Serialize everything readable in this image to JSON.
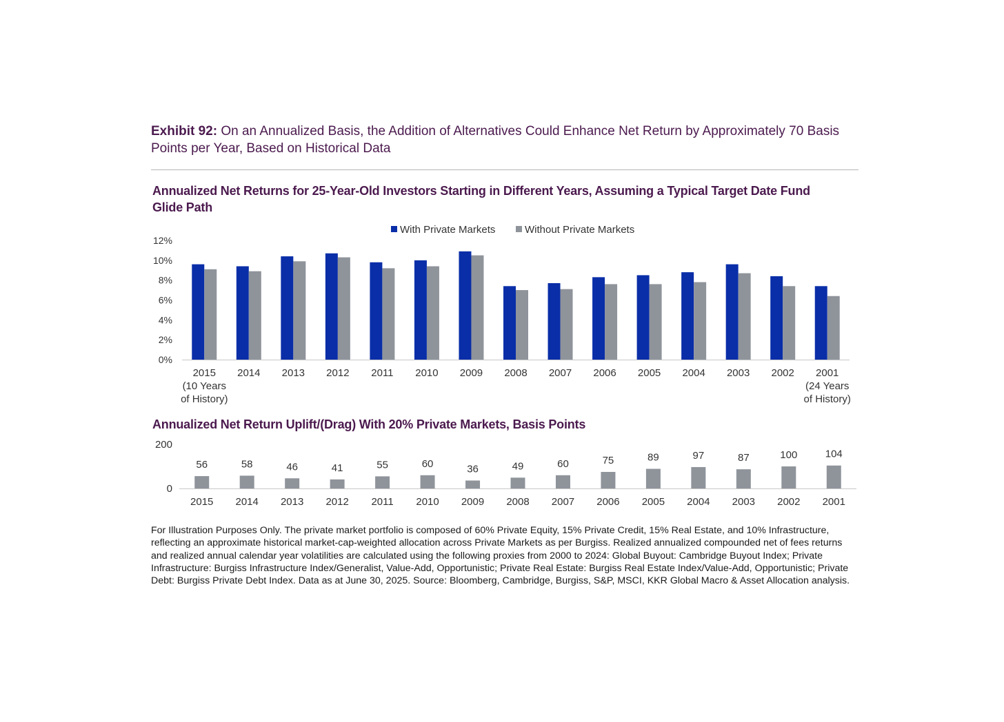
{
  "exhibit": {
    "label": "Exhibit 92:",
    "title": " On an Annualized Basis, the Addition of Alternatives Could Enhance Net Return by Approximately 70 Basis Points per Year, Based on Historical Data"
  },
  "colors": {
    "with_private": "#0a2ea8",
    "without_private": "#8f949b",
    "title": "#4b1a4e"
  },
  "chart_data": [
    {
      "type": "bar",
      "title": "Annualized Net Returns for 25-Year-Old Investors Starting in Different Years, Assuming a Typical Target Date Fund Glide Path",
      "categories": [
        "2015",
        "2014",
        "2013",
        "2012",
        "2011",
        "2010",
        "2009",
        "2008",
        "2007",
        "2006",
        "2005",
        "2004",
        "2003",
        "2002",
        "2001"
      ],
      "category_sublabels": {
        "0": [
          "(10 Years",
          "of History)"
        ],
        "14": [
          "(24 Years",
          "of History)"
        ]
      },
      "series": [
        {
          "name": "With Private Markets",
          "values": [
            9.6,
            9.4,
            10.4,
            10.7,
            9.8,
            10.0,
            10.9,
            7.4,
            7.7,
            8.3,
            8.5,
            8.8,
            9.6,
            8.4,
            7.4
          ]
        },
        {
          "name": "Without Private Markets",
          "values": [
            9.1,
            8.9,
            9.9,
            10.3,
            9.2,
            9.4,
            10.5,
            7.0,
            7.1,
            7.6,
            7.6,
            7.8,
            8.7,
            7.4,
            6.4
          ]
        }
      ],
      "ylim": [
        0,
        12
      ],
      "yticks": [
        "0%",
        "2%",
        "4%",
        "6%",
        "8%",
        "10%",
        "12%"
      ],
      "ytick_values": [
        0,
        2,
        4,
        6,
        8,
        10,
        12
      ],
      "legend": "top-center",
      "grid": false
    },
    {
      "type": "bar",
      "title": "Annualized Net Return Uplift/(Drag) With 20% Private Markets, Basis Points",
      "categories": [
        "2015",
        "2014",
        "2013",
        "2012",
        "2011",
        "2010",
        "2009",
        "2008",
        "2007",
        "2006",
        "2005",
        "2004",
        "2003",
        "2002",
        "2001"
      ],
      "values": [
        56,
        58,
        46,
        41,
        55,
        60,
        36,
        49,
        60,
        75,
        89,
        97,
        87,
        100,
        104
      ],
      "ylim": [
        0,
        200
      ],
      "yticks": [
        "0",
        "200"
      ],
      "ytick_values": [
        0,
        200
      ],
      "grid": false
    }
  ],
  "footnote": "For Illustration Purposes Only. The private market portfolio is composed of 60% Private Equity, 15% Private Credit, 15% Real Estate, and 10% Infrastructure, reflecting an approximate historical market-cap-weighted allocation across Private Markets as per Burgiss. Realized annualized compounded net of fees returns and realized annual calendar year volatilities are calculated using the following proxies from 2000 to 2024: Global Buyout: Cambridge Buyout Index; Private Infrastructure: Burgiss Infrastructure Index/Generalist, Value-Add, Opportunistic; Private Real Estate: Burgiss Real Estate Index/Value-Add, Opportunistic; Private Debt: Burgiss Private Debt Index. Data as at June 30, 2025. Source: Bloomberg, Cambridge, Burgiss, S&P, MSCI, KKR Global Macro & Asset Allocation analysis."
}
